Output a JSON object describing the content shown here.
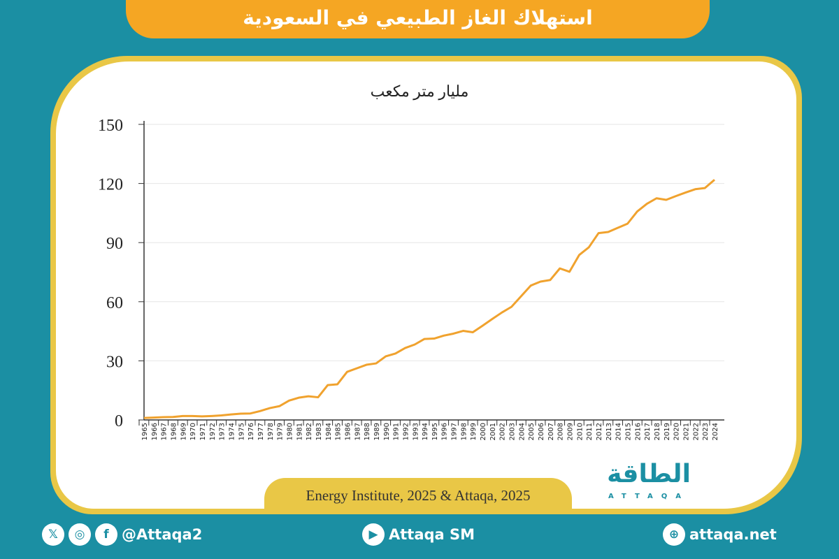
{
  "header": {
    "title": "استهلاك الغاز الطبيعي في السعودية"
  },
  "source": "Energy Institute, 2025 & Attaqa, 2025",
  "logo": {
    "arabic": "الطاقة",
    "latin": "ATTAQA"
  },
  "footer": {
    "social_handle": "@Attaqa2",
    "youtube": "Attaqa SM",
    "website": "attaqa.net",
    "icons": [
      "x-icon",
      "instagram-icon",
      "facebook-icon",
      "youtube-icon",
      "globe-icon"
    ]
  },
  "colors": {
    "background": "#1b8fa3",
    "title_bar": "#f5a623",
    "line": "#f0a22e",
    "frame": "#e9c746"
  },
  "chart_data": {
    "type": "line",
    "title": "",
    "unit_label": "مليار متر مكعب",
    "ylim": [
      0,
      150
    ],
    "yticks": [
      0,
      30,
      60,
      90,
      120,
      150
    ],
    "grid": true,
    "x": [
      1965,
      1966,
      1967,
      1968,
      1969,
      1970,
      1971,
      1972,
      1973,
      1974,
      1975,
      1976,
      1977,
      1978,
      1979,
      1980,
      1981,
      1982,
      1983,
      1984,
      1985,
      1986,
      1987,
      1988,
      1989,
      1990,
      1991,
      1992,
      1993,
      1994,
      1995,
      1996,
      1997,
      1998,
      1999,
      2000,
      2001,
      2002,
      2003,
      2004,
      2005,
      2006,
      2007,
      2008,
      2009,
      2010,
      2011,
      2012,
      2013,
      2014,
      2015,
      2016,
      2017,
      2018,
      2019,
      2020,
      2021,
      2022,
      2023,
      2024
    ],
    "series": [
      {
        "values": [
          1.0,
          1.2,
          1.4,
          1.5,
          2.0,
          2.0,
          1.8,
          2.0,
          2.3,
          2.8,
          3.2,
          3.3,
          4.5,
          6.0,
          7.0,
          9.8,
          11.3,
          12.0,
          11.5,
          17.7,
          18.1,
          24.4,
          26.2,
          28.0,
          28.7,
          32.3,
          33.7,
          36.5,
          38.3,
          41.1,
          41.3,
          42.8,
          43.8,
          45.2,
          44.5,
          47.8,
          51.2,
          54.5,
          57.4,
          62.8,
          68.2,
          70.2,
          71.0,
          76.9,
          75.2,
          83.7,
          87.6,
          94.8,
          95.4,
          97.5,
          99.6,
          105.8,
          109.7,
          112.5,
          111.7,
          113.6,
          115.4,
          117.1,
          117.7,
          121.9
        ]
      }
    ]
  }
}
